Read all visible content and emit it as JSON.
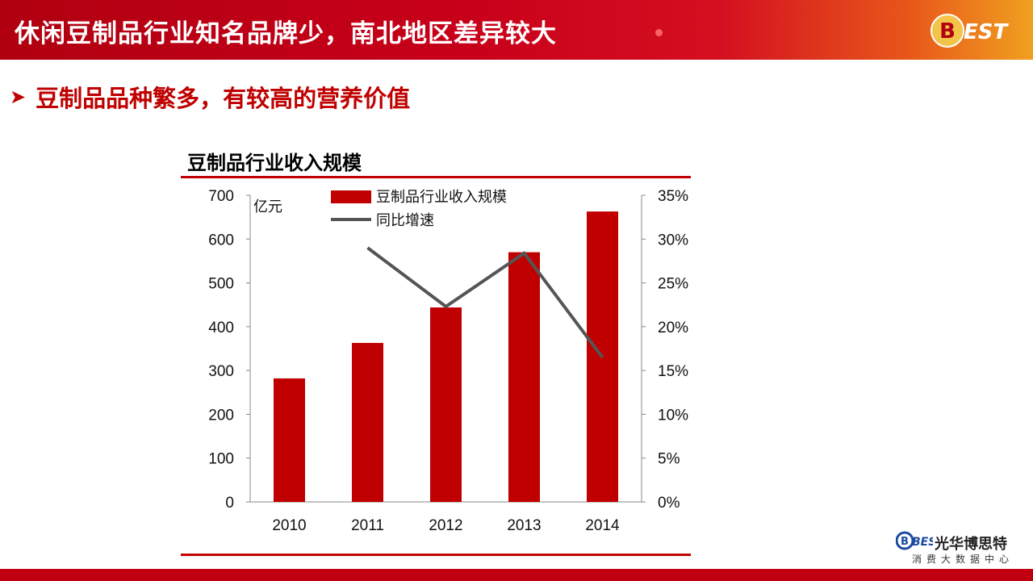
{
  "header": {
    "title": "休闲豆制品行业知名品牌少，南北地区差异较大",
    "logo_text": "BEST"
  },
  "bullet": {
    "text": "豆制品品种繁多，有较高的营养价值"
  },
  "brand": {
    "logo": "BEST",
    "name": "光华博思特",
    "subtitle": "消费大数据中心"
  },
  "colors": {
    "accent": "#c00000",
    "line": "#555555",
    "header": "#c8001a"
  },
  "chart_data": {
    "type": "bar",
    "title": "豆制品行业收入规模",
    "ylabel": "亿元",
    "categories": [
      "2010",
      "2011",
      "2012",
      "2013",
      "2014"
    ],
    "series": [
      {
        "name": "豆制品行业收入规模",
        "type": "bar",
        "axis": "left",
        "values": [
          282,
          363,
          444,
          570,
          663
        ]
      },
      {
        "name": "同比增速",
        "type": "line",
        "axis": "right",
        "values": [
          null,
          0.29,
          0.223,
          0.284,
          0.165
        ]
      }
    ],
    "ylim": [
      0,
      700
    ],
    "y_ticks": [
      "700",
      "600",
      "500",
      "400",
      "300",
      "200",
      "100",
      "0"
    ],
    "y2lim": [
      0,
      0.35
    ],
    "y2_ticks": [
      "35%",
      "30%",
      "25%",
      "20%",
      "15%",
      "10%",
      "5%",
      "0%"
    ],
    "legend": "top-center",
    "grid": false
  }
}
